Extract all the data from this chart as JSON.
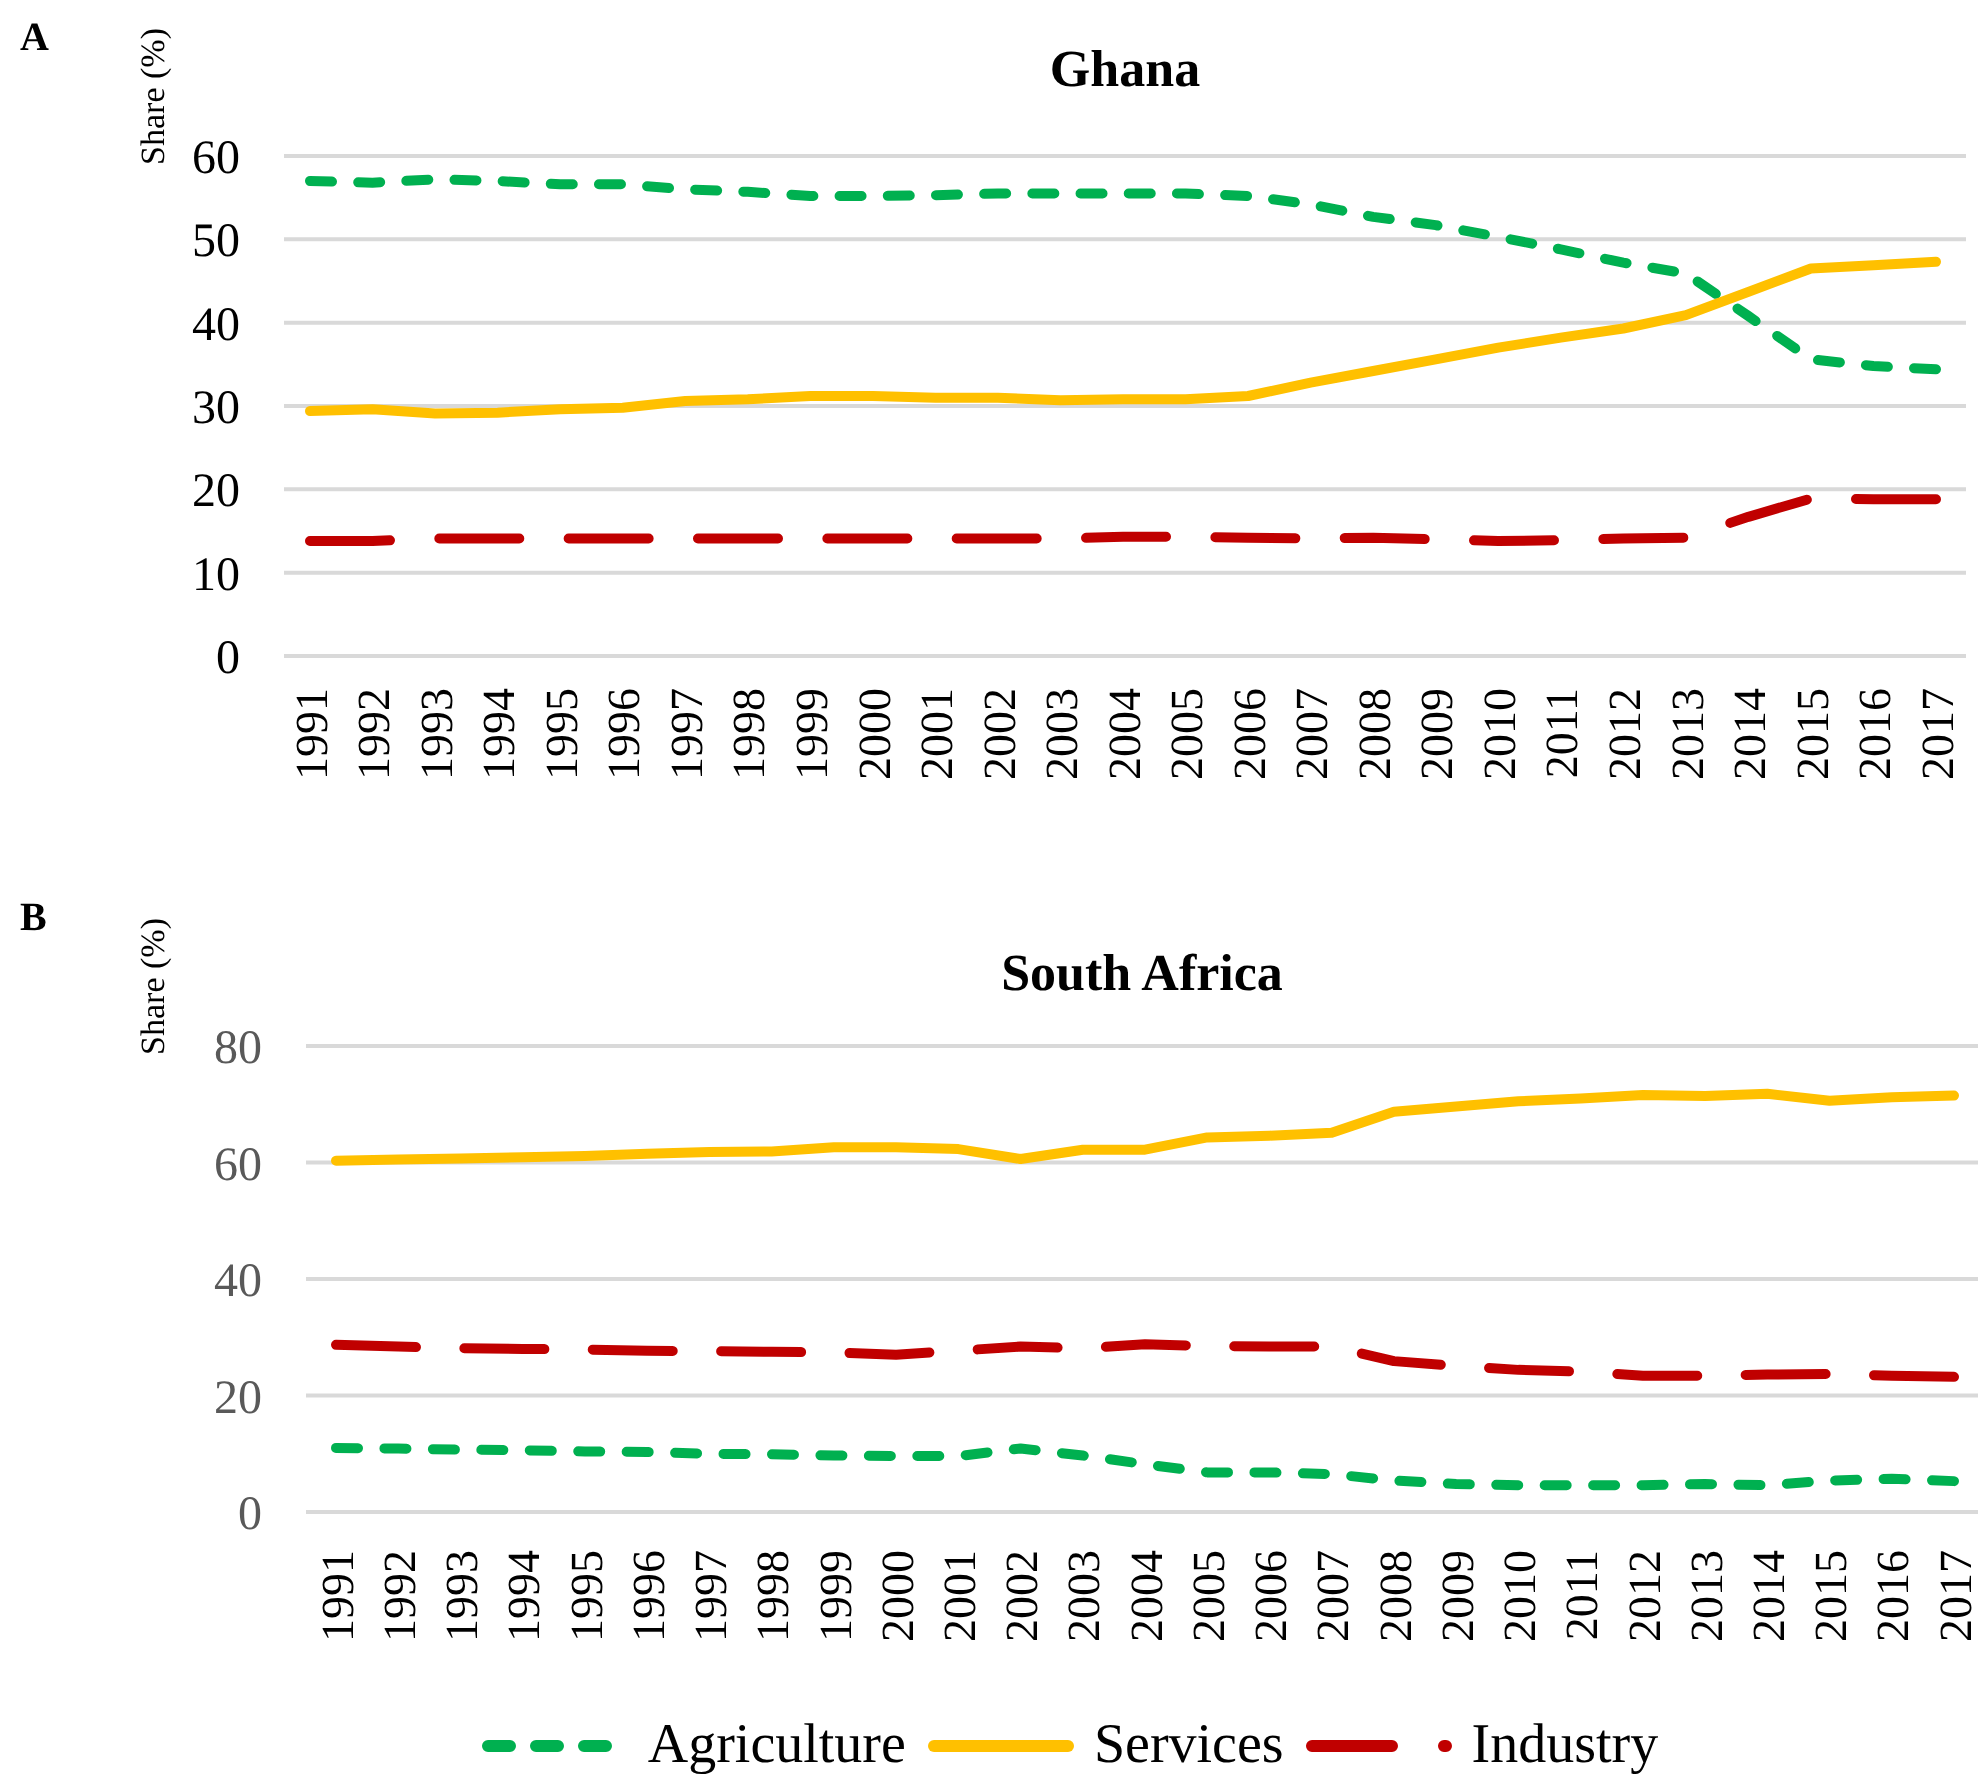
{
  "chart_data": [
    {
      "type": "line",
      "title": "Ghana",
      "ylabel": "Share (%)",
      "annotations": [
        "A"
      ],
      "categories": [
        "1991",
        "1992",
        "1993",
        "1994",
        "1995",
        "1996",
        "1997",
        "1998",
        "1999",
        "2000",
        "2001",
        "2002",
        "2003",
        "2004",
        "2005",
        "2006",
        "2007",
        "2008",
        "2009",
        "2010",
        "2011",
        "2012",
        "2013",
        "2014",
        "2015",
        "2016",
        "2017"
      ],
      "series": [
        {
          "color": "#00b050",
          "line_style": "dotted",
          "values": [
            57.0,
            56.8,
            57.2,
            57.0,
            56.6,
            56.6,
            56.0,
            55.7,
            55.2,
            55.2,
            55.3,
            55.5,
            55.5,
            55.5,
            55.5,
            55.2,
            54.2,
            52.7,
            51.7,
            50.3,
            48.8,
            47.2,
            45.9,
            40.8,
            35.6,
            34.8,
            34.4
          ]
        },
        {
          "color": "#ffc000",
          "line_style": "solid",
          "values": [
            29.4,
            29.6,
            29.1,
            29.2,
            29.6,
            29.8,
            30.6,
            30.8,
            31.2,
            31.2,
            31.0,
            31.0,
            30.7,
            30.8,
            30.8,
            31.2,
            32.8,
            34.2,
            35.6,
            37.0,
            38.2,
            39.3,
            40.9,
            43.7,
            46.5,
            46.9,
            47.3
          ]
        },
        {
          "color": "#c00000",
          "line_style": "dashed",
          "values": [
            13.8,
            13.8,
            14.1,
            14.1,
            14.1,
            14.1,
            14.1,
            14.1,
            14.1,
            14.1,
            14.1,
            14.1,
            14.1,
            14.3,
            14.3,
            14.2,
            14.1,
            14.2,
            14.0,
            13.8,
            13.9,
            14.1,
            14.2,
            16.7,
            18.9,
            18.8,
            18.8
          ]
        }
      ],
      "ylim": [
        0,
        60
      ],
      "yticks": [
        0,
        10,
        20,
        30,
        40,
        50,
        60
      ],
      "grid": "y"
    },
    {
      "type": "line",
      "title": "South Africa",
      "ylabel": "Share (%)",
      "annotations": [
        "B"
      ],
      "categories": [
        "1991",
        "1992",
        "1993",
        "1994",
        "1995",
        "1996",
        "1997",
        "1998",
        "1999",
        "2000",
        "2001",
        "2002",
        "2003",
        "2004",
        "2005",
        "2006",
        "2007",
        "2008",
        "2009",
        "2010",
        "2011",
        "2012",
        "2013",
        "2014",
        "2015",
        "2016",
        "2017"
      ],
      "series": [
        {
          "name": "Agriculture",
          "color": "#00b050",
          "line_style": "dotted",
          "values": [
            11.0,
            10.9,
            10.7,
            10.6,
            10.4,
            10.3,
            10.0,
            9.9,
            9.7,
            9.6,
            9.6,
            10.9,
            9.7,
            8.2,
            6.8,
            6.8,
            6.5,
            5.4,
            4.8,
            4.6,
            4.6,
            4.6,
            4.8,
            4.6,
            5.4,
            5.7,
            5.3
          ]
        },
        {
          "name": "Services",
          "color": "#ffc000",
          "line_style": "solid",
          "values": [
            60.3,
            60.5,
            60.7,
            60.9,
            61.1,
            61.5,
            61.8,
            61.9,
            62.6,
            62.6,
            62.3,
            60.6,
            62.2,
            62.2,
            64.3,
            64.6,
            65.1,
            68.7,
            69.6,
            70.5,
            71.0,
            71.6,
            71.4,
            71.8,
            70.6,
            71.2,
            71.5
          ]
        },
        {
          "name": "Industry",
          "color": "#c00000",
          "line_style": "dashed",
          "values": [
            28.7,
            28.4,
            28.1,
            28.0,
            27.9,
            27.7,
            27.6,
            27.5,
            27.4,
            27.0,
            27.7,
            28.4,
            28.1,
            28.8,
            28.5,
            28.4,
            28.4,
            25.9,
            25.1,
            24.4,
            24.1,
            23.4,
            23.4,
            23.6,
            23.7,
            23.4,
            23.2
          ]
        }
      ],
      "ylim": [
        0,
        80
      ],
      "yticks": [
        0,
        20,
        40,
        60,
        80
      ],
      "grid": "y",
      "legend": "bottom"
    }
  ]
}
